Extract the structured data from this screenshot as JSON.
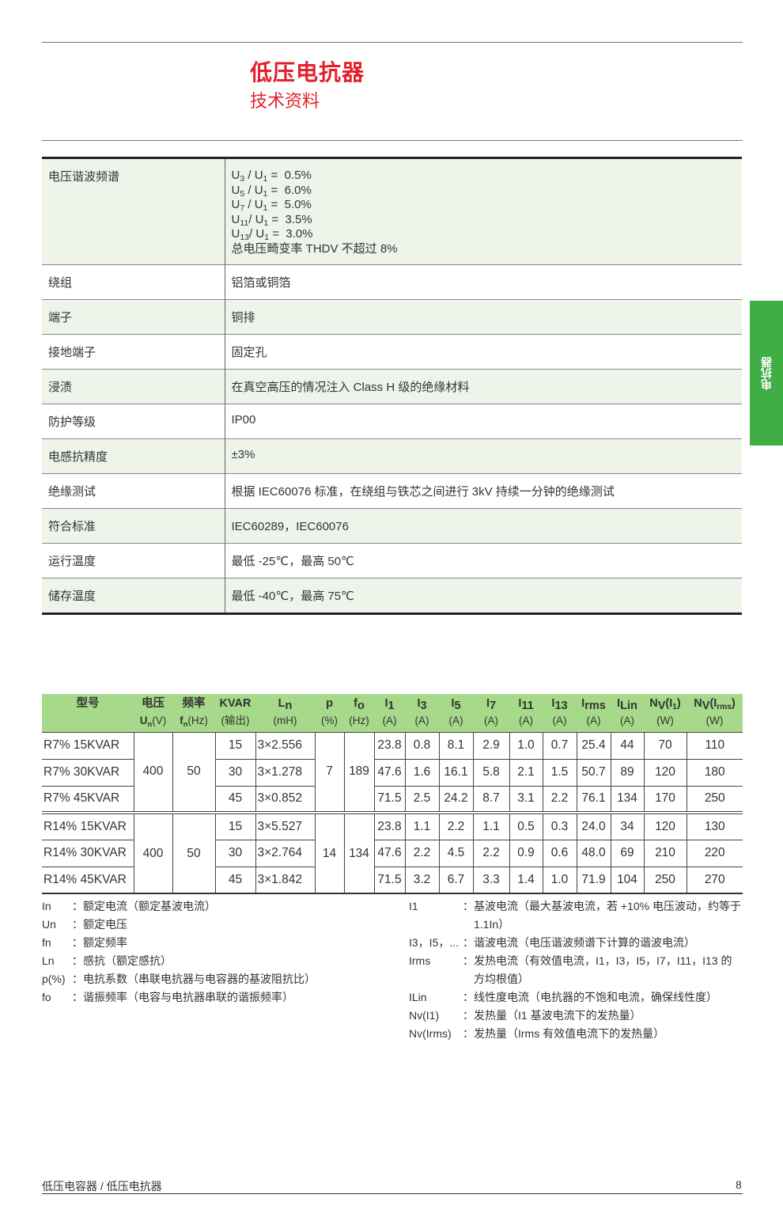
{
  "header": {
    "title": "低压电抗器",
    "subtitle": "技术资料"
  },
  "side_tab": "电抗器",
  "spec": {
    "harmonics_label": "电压谐波频谱",
    "harmonics": [
      {
        "u": "U",
        "sub": "3",
        "rest": " / U",
        "sub1": "1",
        "val": " =  0.5%"
      },
      {
        "u": "U",
        "sub": "5",
        "rest": " / U",
        "sub1": "1",
        "val": " =  6.0%"
      },
      {
        "u": "U",
        "sub": "7",
        "rest": " / U",
        "sub1": "1",
        "val": " =  5.0%"
      },
      {
        "u": "U",
        "sub": "11",
        "rest": "/ U",
        "sub1": "1",
        "val": " =  3.5%"
      },
      {
        "u": "U",
        "sub": "13",
        "rest": "/ U",
        "sub1": "1",
        "val": " =  3.0%"
      }
    ],
    "thdv": "总电压畸变率 THDV 不超过 8%",
    "rows": [
      {
        "k": "绕组",
        "v": "铝箔或铜箔"
      },
      {
        "k": "端子",
        "v": "铜排"
      },
      {
        "k": "接地端子",
        "v": "固定孔"
      },
      {
        "k": "浸渍",
        "v": "在真空高压的情况注入 Class H 级的绝缘材料"
      },
      {
        "k": "防护等级",
        "v": "IP00"
      },
      {
        "k": "电感抗精度",
        "v": "±3%"
      },
      {
        "k": "绝缘测试",
        "v": "根据 IEC60076 标准，在绕组与铁芯之间进行 3kV 持续一分钟的绝缘测试"
      },
      {
        "k": "符合标准",
        "v": "IEC60289，IEC60076"
      },
      {
        "k": "运行温度",
        "v": "最低 -25℃，最高 50℃"
      },
      {
        "k": "储存温度",
        "v": "最低 -40℃，最高 75℃"
      }
    ]
  },
  "table": {
    "headers": [
      {
        "t": "型号",
        "ts": "",
        "u": "",
        "us": "",
        "uu": ""
      },
      {
        "t": "电压",
        "ts": "",
        "u": "U",
        "us": "n",
        "uu": "(V)"
      },
      {
        "t": "频率",
        "ts": "",
        "u": "f",
        "us": "n",
        "uu": "(Hz)"
      },
      {
        "t": "KVAR",
        "ts": "",
        "u": "(输出)",
        "us": "",
        "uu": ""
      },
      {
        "t": "L",
        "ts": "n",
        "u": "(mH)",
        "us": "",
        "uu": ""
      },
      {
        "t": "p",
        "ts": "",
        "u": "(%)",
        "us": "",
        "uu": ""
      },
      {
        "t": "f",
        "ts": "o",
        "u": "(Hz)",
        "us": "",
        "uu": ""
      },
      {
        "t": "I",
        "ts": "1",
        "u": "(A)",
        "us": "",
        "uu": ""
      },
      {
        "t": "I",
        "ts": "3",
        "u": "(A)",
        "us": "",
        "uu": ""
      },
      {
        "t": "I",
        "ts": "5",
        "u": "(A)",
        "us": "",
        "uu": ""
      },
      {
        "t": "I",
        "ts": "7",
        "u": "(A)",
        "us": "",
        "uu": ""
      },
      {
        "t": "I",
        "ts": "11",
        "u": "(A)",
        "us": "",
        "uu": ""
      },
      {
        "t": "I",
        "ts": "13",
        "u": "(A)",
        "us": "",
        "uu": ""
      },
      {
        "t": "I",
        "ts": "rms",
        "u": "(A)",
        "us": "",
        "uu": ""
      },
      {
        "t": "I",
        "ts": "Lin",
        "u": "(A)",
        "us": "",
        "uu": ""
      },
      {
        "t": "N",
        "ts": "V",
        "tr": "(I1)",
        "u": "(W)",
        "us": "",
        "uu": ""
      },
      {
        "t": "N",
        "ts": "V",
        "tr": "(Irms)",
        "u": "(W)",
        "us": "",
        "uu": ""
      }
    ],
    "groups": [
      {
        "un": "400",
        "fn": "50",
        "p": "7",
        "fo": "189",
        "rows": [
          [
            "R7% 15KVAR",
            "15",
            "3×2.556",
            "23.8",
            "0.8",
            "8.1",
            "2.9",
            "1.0",
            "0.7",
            "25.4",
            "44",
            "70",
            "110"
          ],
          [
            "R7% 30KVAR",
            "30",
            "3×1.278",
            "47.6",
            "1.6",
            "16.1",
            "5.8",
            "2.1",
            "1.5",
            "50.7",
            "89",
            "120",
            "180"
          ],
          [
            "R7% 45KVAR",
            "45",
            "3×0.852",
            "71.5",
            "2.5",
            "24.2",
            "8.7",
            "3.1",
            "2.2",
            "76.1",
            "134",
            "170",
            "250"
          ]
        ]
      },
      {
        "un": "400",
        "fn": "50",
        "p": "14",
        "fo": "134",
        "rows": [
          [
            "R14% 15KVAR",
            "15",
            "3×5.527",
            "23.8",
            "1.1",
            "2.2",
            "1.1",
            "0.5",
            "0.3",
            "24.0",
            "34",
            "120",
            "130"
          ],
          [
            "R14% 30KVAR",
            "30",
            "3×2.764",
            "47.6",
            "2.2",
            "4.5",
            "2.2",
            "0.9",
            "0.6",
            "48.0",
            "69",
            "210",
            "220"
          ],
          [
            "R14% 45KVAR",
            "45",
            "3×1.842",
            "71.5",
            "3.2",
            "6.7",
            "3.3",
            "1.4",
            "1.0",
            "71.9",
            "104",
            "250",
            "270"
          ]
        ]
      }
    ]
  },
  "legend_left": [
    {
      "s": "In",
      "d": "额定电流（额定基波电流）"
    },
    {
      "s": "Un",
      "d": "额定电压"
    },
    {
      "s": "fn",
      "d": "额定频率"
    },
    {
      "s": "Ln",
      "d": "感抗（额定感抗）"
    },
    {
      "s": "p(%)",
      "d": "电抗系数（串联电抗器与电容器的基波阻抗比）"
    },
    {
      "s": "fo",
      "d": "谐振频率（电容与电抗器串联的谐振频率）"
    }
  ],
  "legend_right": [
    {
      "s": "I1",
      "d": "基波电流（最大基波电流，若 +10% 电压波动，约等于 1.1In）"
    },
    {
      "s": "I3，I5，...",
      "d": "谐波电流（电压谐波频谱下计算的谐波电流）"
    },
    {
      "s": "Irms",
      "d": "发热电流（有效值电流，I1，I3，I5，I7，I11，I13 的方均根值）"
    },
    {
      "s": "ILin",
      "d": "线性度电流（电抗器的不饱和电流，确保线性度）"
    },
    {
      "s": "Nv(I1)",
      "d": "发热量（I1 基波电流下的发热量）"
    },
    {
      "s": "Nv(Irms)",
      "d": "发热量（Irms 有效值电流下的发热量）"
    }
  ],
  "footer": {
    "text": "低压电容器 / 低压电抗器",
    "page": "8"
  },
  "colors": {
    "title": "#e4202a",
    "header_green": "#a6d98a",
    "row_green": "#eef4ea",
    "tab_green": "#3fae45"
  }
}
